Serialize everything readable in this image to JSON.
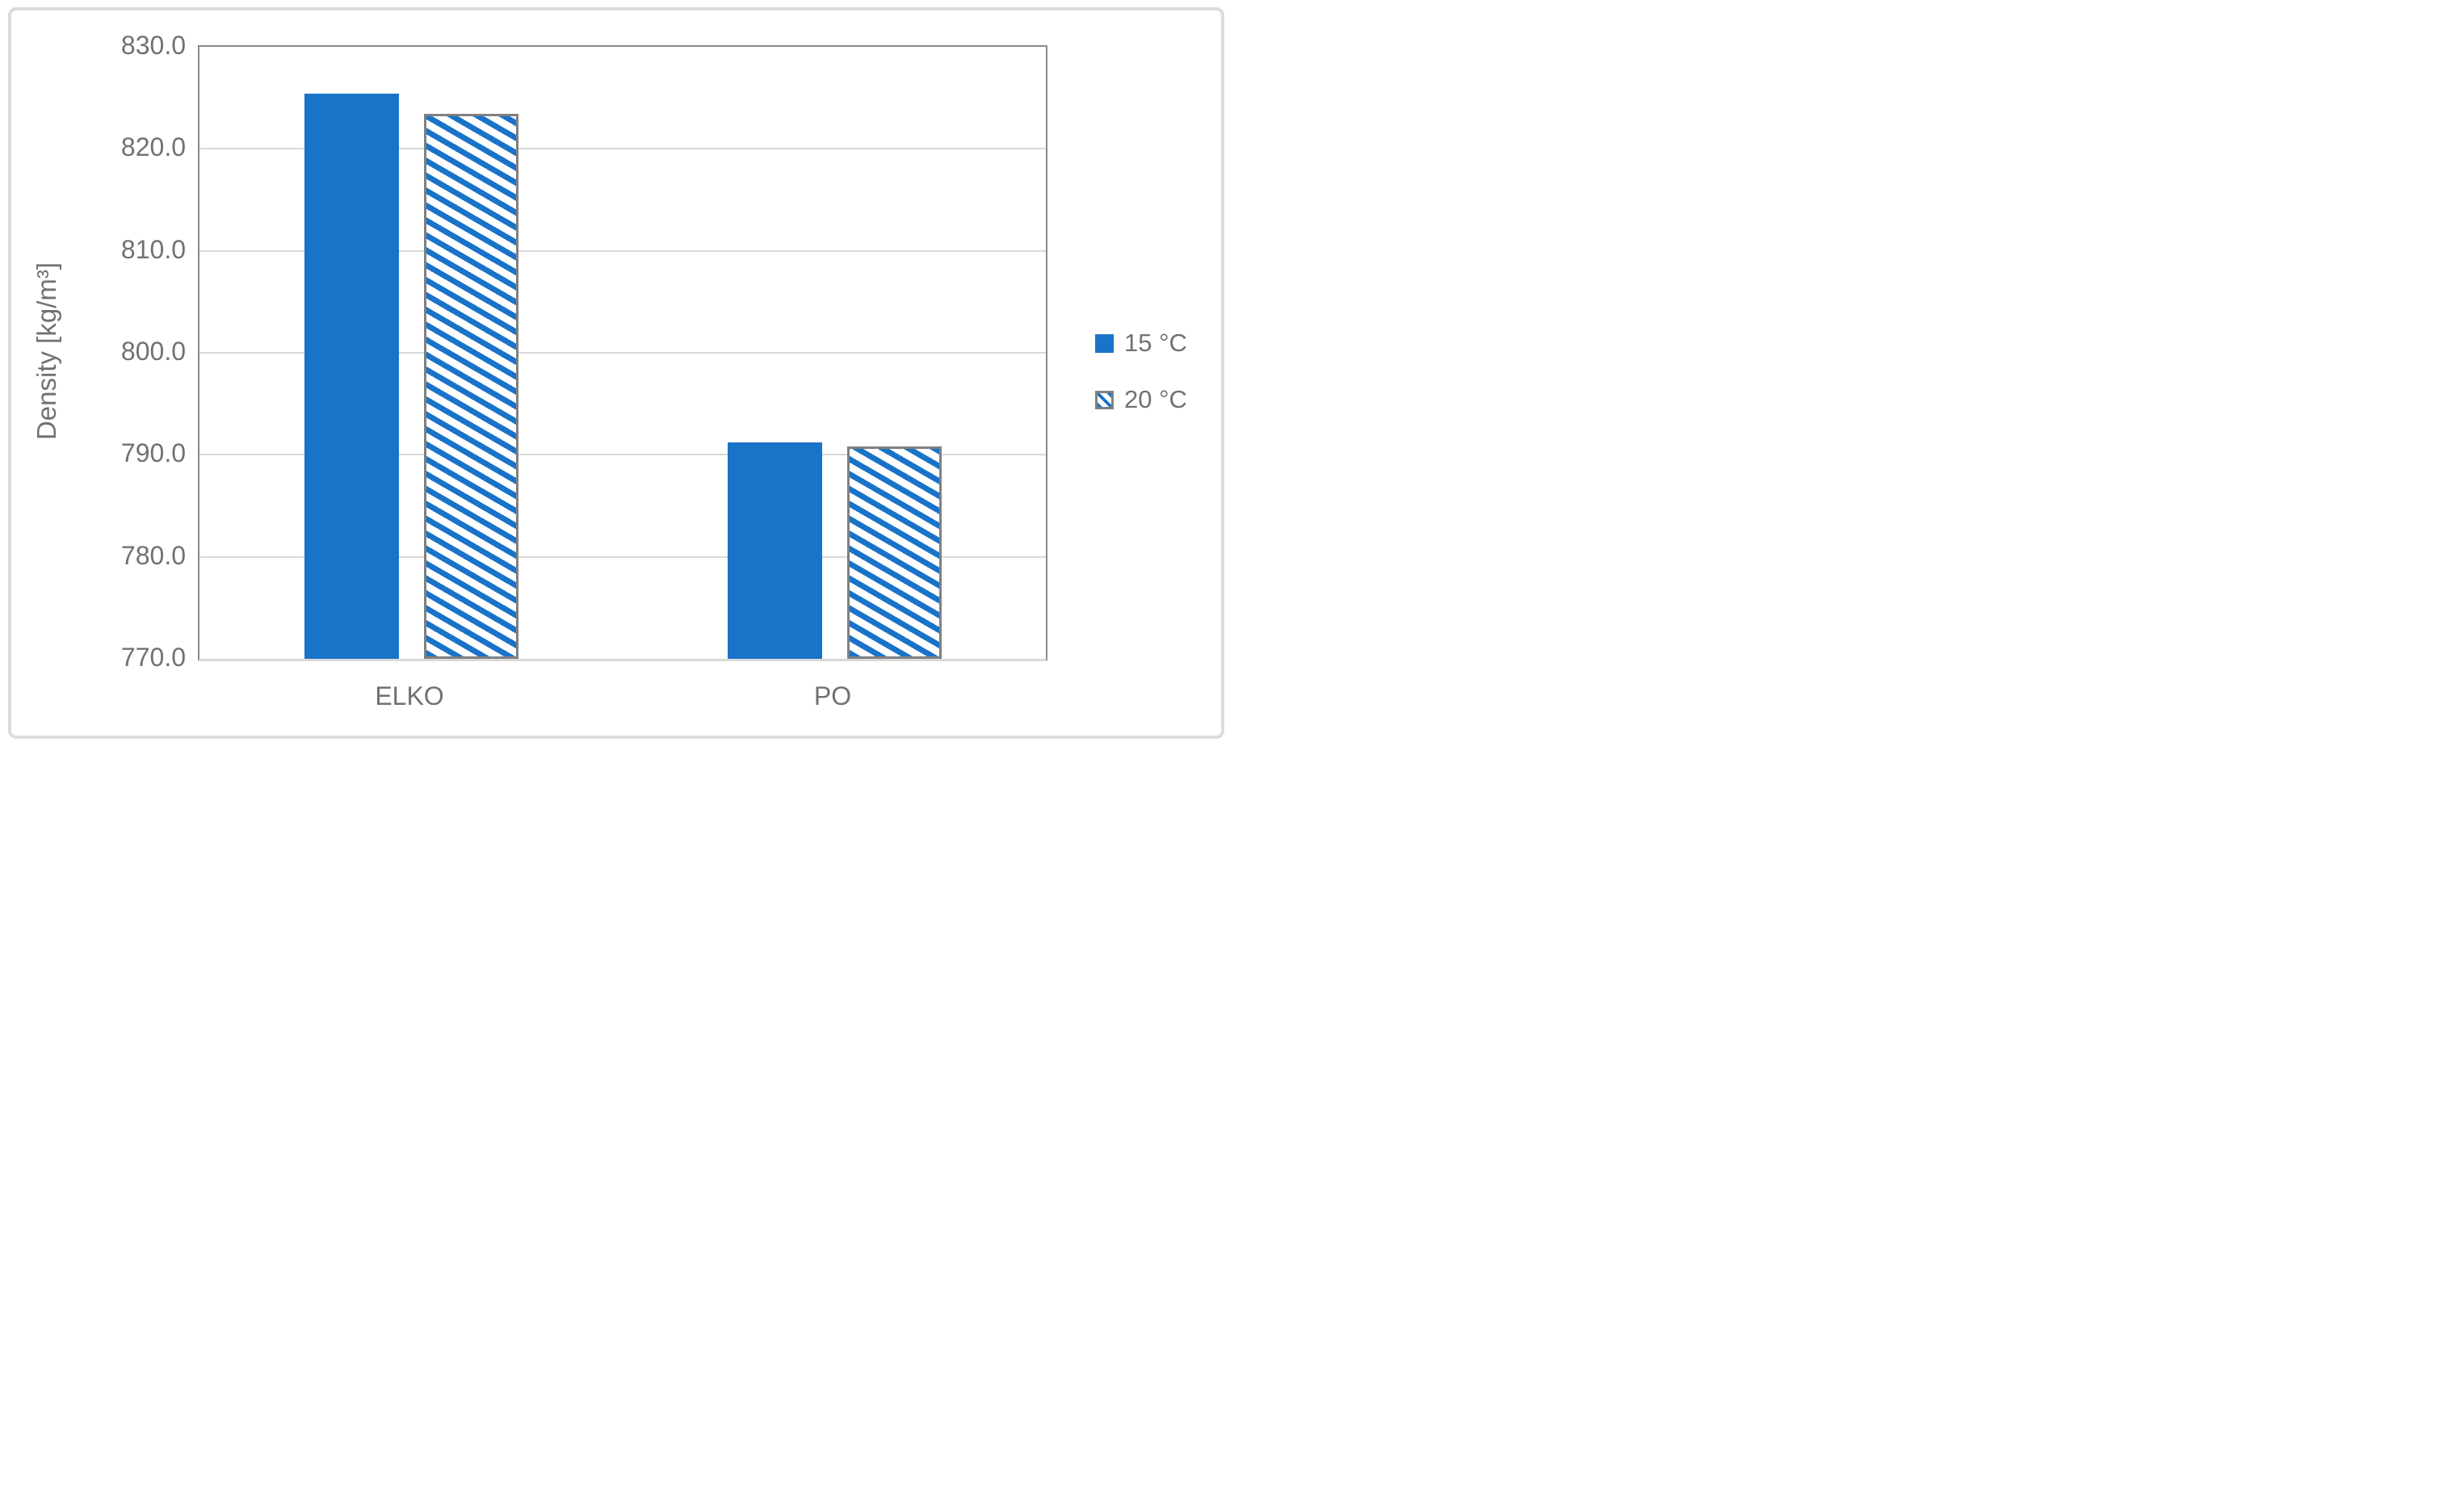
{
  "chart_data": {
    "type": "bar",
    "title": "",
    "categories": [
      "ELKO",
      "PO"
    ],
    "series": [
      {
        "name": "15 °C",
        "fill": "solid",
        "color": "#1973c8",
        "values": [
          825.4,
          791.2
        ]
      },
      {
        "name": "20 °C",
        "fill": "diagonal-hatch",
        "color": "#1973c8",
        "border_color": "#808080",
        "values": [
          823.4,
          790.8
        ]
      }
    ],
    "xlabel": "",
    "ylabel": "Density [kg/m³]",
    "ylim": [
      770,
      830
    ],
    "ytick_step": 10,
    "yticks": [
      "830.0",
      "820.0",
      "810.0",
      "800.0",
      "790.0",
      "780.0",
      "770.0"
    ],
    "grid": true,
    "legend_position": "right",
    "colors": {
      "bar_blue": "#1973c8",
      "hatch_border_gray": "#808080",
      "plot_border_gray": "#8a8a8a",
      "gridline_gray": "#d9d9d9",
      "text_gray": "#717171",
      "chart_border_gray": "#dcdcdc"
    }
  }
}
